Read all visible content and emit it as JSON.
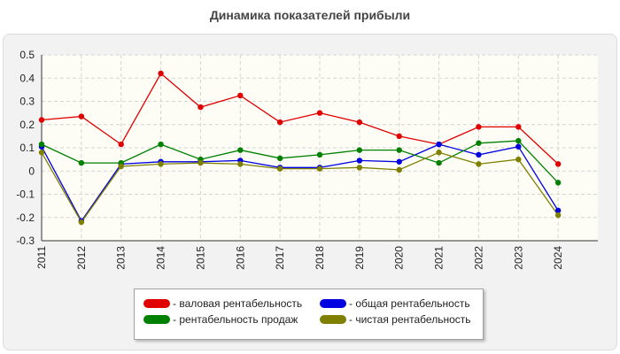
{
  "title": "Динамика показателей прибыли",
  "chart_data": {
    "type": "line",
    "categories": [
      "2011",
      "2012",
      "2013",
      "2014",
      "2015",
      "2016",
      "2017",
      "2018",
      "2019",
      "2020",
      "2021",
      "2022",
      "2023",
      "2024"
    ],
    "ylim": [
      -0.3,
      0.5
    ],
    "yticks": [
      0.5,
      0.4,
      0.3,
      0.2,
      0.1,
      0,
      -0.1,
      -0.2,
      -0.3
    ],
    "grid": true,
    "legend_position": "bottom",
    "series": [
      {
        "name": "валовая рентабельность",
        "color": "#e00000",
        "values": [
          0.22,
          0.235,
          0.115,
          0.42,
          0.275,
          0.325,
          0.21,
          0.25,
          0.21,
          0.15,
          0.115,
          0.19,
          0.19,
          0.03
        ]
      },
      {
        "name": "общая рентабельность",
        "color": "#0000e0",
        "values": [
          0.105,
          -0.215,
          0.03,
          0.04,
          0.04,
          0.045,
          0.015,
          0.015,
          0.045,
          0.04,
          0.115,
          0.07,
          0.105,
          -0.17
        ]
      },
      {
        "name": "рентабельность продаж",
        "color": "#008000",
        "values": [
          0.115,
          0.035,
          0.035,
          0.115,
          0.05,
          0.09,
          0.055,
          0.07,
          0.09,
          0.09,
          0.035,
          0.12,
          0.13,
          -0.05
        ]
      },
      {
        "name": "чистая рентабельность",
        "color": "#808000",
        "values": [
          0.08,
          -0.22,
          0.02,
          0.03,
          0.035,
          0.03,
          0.01,
          0.01,
          0.015,
          0.005,
          0.08,
          0.03,
          0.05,
          -0.19
        ]
      }
    ]
  }
}
